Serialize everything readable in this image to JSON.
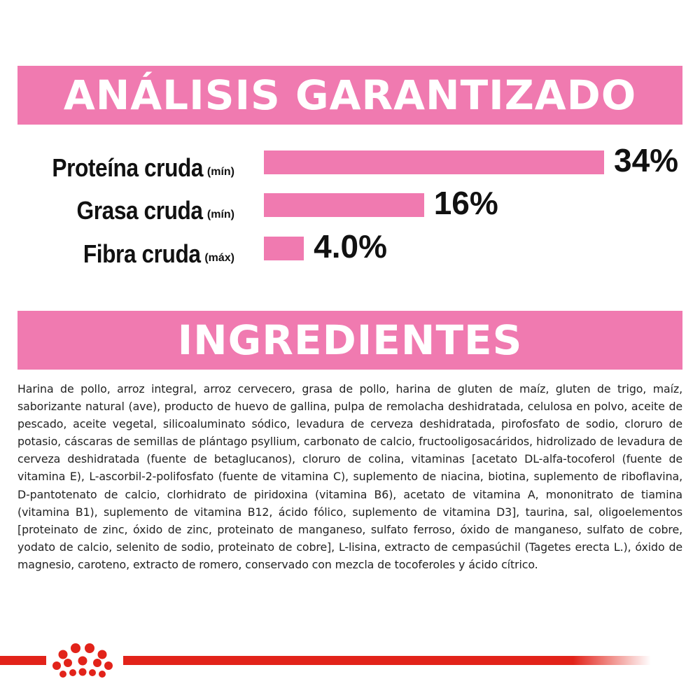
{
  "colors": {
    "banner": "#f07ab0",
    "bar": "#f07ab0",
    "brand_red": "#e2231a"
  },
  "analysis": {
    "title": "ANÁLISIS GARANTIZADO",
    "rows": [
      {
        "name": "Proteína cruda",
        "qualifier": "(mín)",
        "value_text": "34%",
        "percent": 34
      },
      {
        "name": "Grasa cruda",
        "qualifier": "(mín)",
        "value_text": "16%",
        "percent": 16
      },
      {
        "name": "Fibra cruda",
        "qualifier": "(máx)",
        "value_text": "4.0%",
        "percent": 4.0
      }
    ]
  },
  "ingredients": {
    "title": "INGREDIENTES",
    "text": "Harina de pollo, arroz integral, arroz cervecero, grasa de pollo, harina de gluten de maíz, gluten de trigo, maíz, saborizante natural (ave), producto de huevo de gallina, pulpa de remolacha deshidratada, celulosa en polvo, aceite de pescado, aceite vegetal, silicoaluminato sódico, levadura de cerveza deshidratada, pirofosfato de sodio, cloruro de potasio, cáscaras de semillas de plántago psyllium, carbonato de calcio, fructooligosacáridos, hidrolizado de levadura de cerveza deshidratada (fuente de betaglucanos), cloruro de colina, vitaminas [acetato DL-alfa-tocoferol (fuente de vitamina E), L-ascorbil-2-polifosfato (fuente de vitamina C), suplemento de niacina, biotina, suplemento de riboflavina, D-pantotenato de calcio, clorhidrato de piridoxina (vitamina B6), acetato de vitamina A, mononitrato de tiamina (vitamina B1), suplemento de vitamina B12, ácido fólico, suplemento de vitamina D3], taurina, sal, oligoelementos [proteinato de zinc, óxido de zinc, proteinato de manganeso, sulfato ferroso, óxido de manganeso, sulfato de cobre, yodato de calcio, selenito de sodio, proteinato de cobre], L-lisina, extracto de cempasúchil (Tagetes erecta L.), óxido de magnesio, caroteno, extracto de romero, conservado con mezcla de tocoferoles y ácido cítrico."
  },
  "footer": {
    "logo_icon": "crown-icon"
  }
}
